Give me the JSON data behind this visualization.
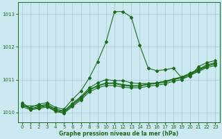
{
  "title": "Graphe pression niveau de la mer (hPa)",
  "bg_color": "#cce8f0",
  "grid_color": "#aac8d8",
  "line_color": "#1a6b1a",
  "xlim": [
    -0.5,
    23.5
  ],
  "ylim": [
    1009.7,
    1013.35
  ],
  "yticks": [
    1010,
    1011,
    1012,
    1013
  ],
  "xticks": [
    0,
    1,
    2,
    3,
    4,
    5,
    6,
    7,
    8,
    9,
    10,
    11,
    12,
    13,
    14,
    15,
    16,
    17,
    18,
    19,
    20,
    21,
    22,
    23
  ],
  "series": [
    {
      "x": [
        0,
        1,
        2,
        3,
        4,
        5,
        6,
        7,
        8,
        9,
        10,
        11,
        12,
        13,
        14,
        15,
        16,
        17,
        18,
        19,
        20,
        21,
        22,
        23
      ],
      "y": [
        1010.2,
        1010.15,
        1010.25,
        1010.3,
        1010.15,
        1010.1,
        1010.4,
        1010.65,
        1011.05,
        1011.55,
        1012.15,
        1013.07,
        1013.07,
        1012.9,
        1012.05,
        1011.35,
        1011.27,
        1011.3,
        1011.35,
        1011.05,
        1011.1,
        1011.4,
        1011.52,
        1011.58
      ],
      "has_markers": true
    },
    {
      "x": [
        0,
        2,
        3,
        4,
        5,
        6,
        7,
        8,
        9,
        10,
        11,
        12,
        13,
        14,
        15,
        16,
        17,
        18,
        19,
        20,
        21,
        22,
        23
      ],
      "y": [
        1010.2,
        1010.2,
        1010.25,
        1010.1,
        1010.05,
        1010.28,
        1010.48,
        1010.75,
        1010.9,
        1011.0,
        1010.97,
        1010.97,
        1010.9,
        1010.88,
        1010.88,
        1010.9,
        1010.95,
        1011.0,
        1011.08,
        1011.15,
        1011.28,
        1011.4,
        1011.5
      ],
      "has_markers": true
    },
    {
      "x": [
        0,
        1,
        2,
        3,
        4,
        5,
        6,
        7,
        8,
        9,
        10,
        11,
        12,
        13,
        14,
        15,
        16,
        17,
        18,
        19,
        20,
        21,
        22,
        23
      ],
      "y": [
        1010.25,
        1010.1,
        1010.15,
        1010.2,
        1010.05,
        1010.0,
        1010.22,
        1010.42,
        1010.68,
        1010.8,
        1010.88,
        1010.88,
        1010.82,
        1010.8,
        1010.8,
        1010.85,
        1010.88,
        1010.92,
        1011.0,
        1011.05,
        1011.18,
        1011.3,
        1011.42,
        1011.48
      ],
      "has_markers": true
    },
    {
      "x": [
        0,
        1,
        2,
        3,
        4,
        5,
        6,
        7,
        8,
        9,
        10,
        11,
        12,
        13,
        14,
        15,
        16,
        17,
        18,
        19,
        20,
        21,
        22,
        23
      ],
      "y": [
        1010.3,
        1010.12,
        1010.18,
        1010.22,
        1010.08,
        1010.03,
        1010.25,
        1010.45,
        1010.7,
        1010.82,
        1010.9,
        1010.9,
        1010.85,
        1010.82,
        1010.82,
        1010.87,
        1010.9,
        1010.95,
        1011.02,
        1011.08,
        1011.2,
        1011.32,
        1011.45,
        1011.52
      ],
      "has_markers": false
    },
    {
      "x": [
        0,
        1,
        2,
        3,
        4,
        5,
        6,
        7,
        8,
        9,
        10,
        11,
        12,
        13,
        14,
        15,
        16,
        17,
        18,
        19,
        20,
        21,
        22,
        23
      ],
      "y": [
        1010.18,
        1010.08,
        1010.12,
        1010.17,
        1010.03,
        1009.98,
        1010.18,
        1010.38,
        1010.62,
        1010.75,
        1010.82,
        1010.82,
        1010.77,
        1010.75,
        1010.75,
        1010.8,
        1010.83,
        1010.87,
        1010.95,
        1011.0,
        1011.13,
        1011.25,
        1011.37,
        1011.43
      ],
      "has_markers": false
    }
  ],
  "marker": "D",
  "markersize": 2.0,
  "linewidth": 0.8
}
